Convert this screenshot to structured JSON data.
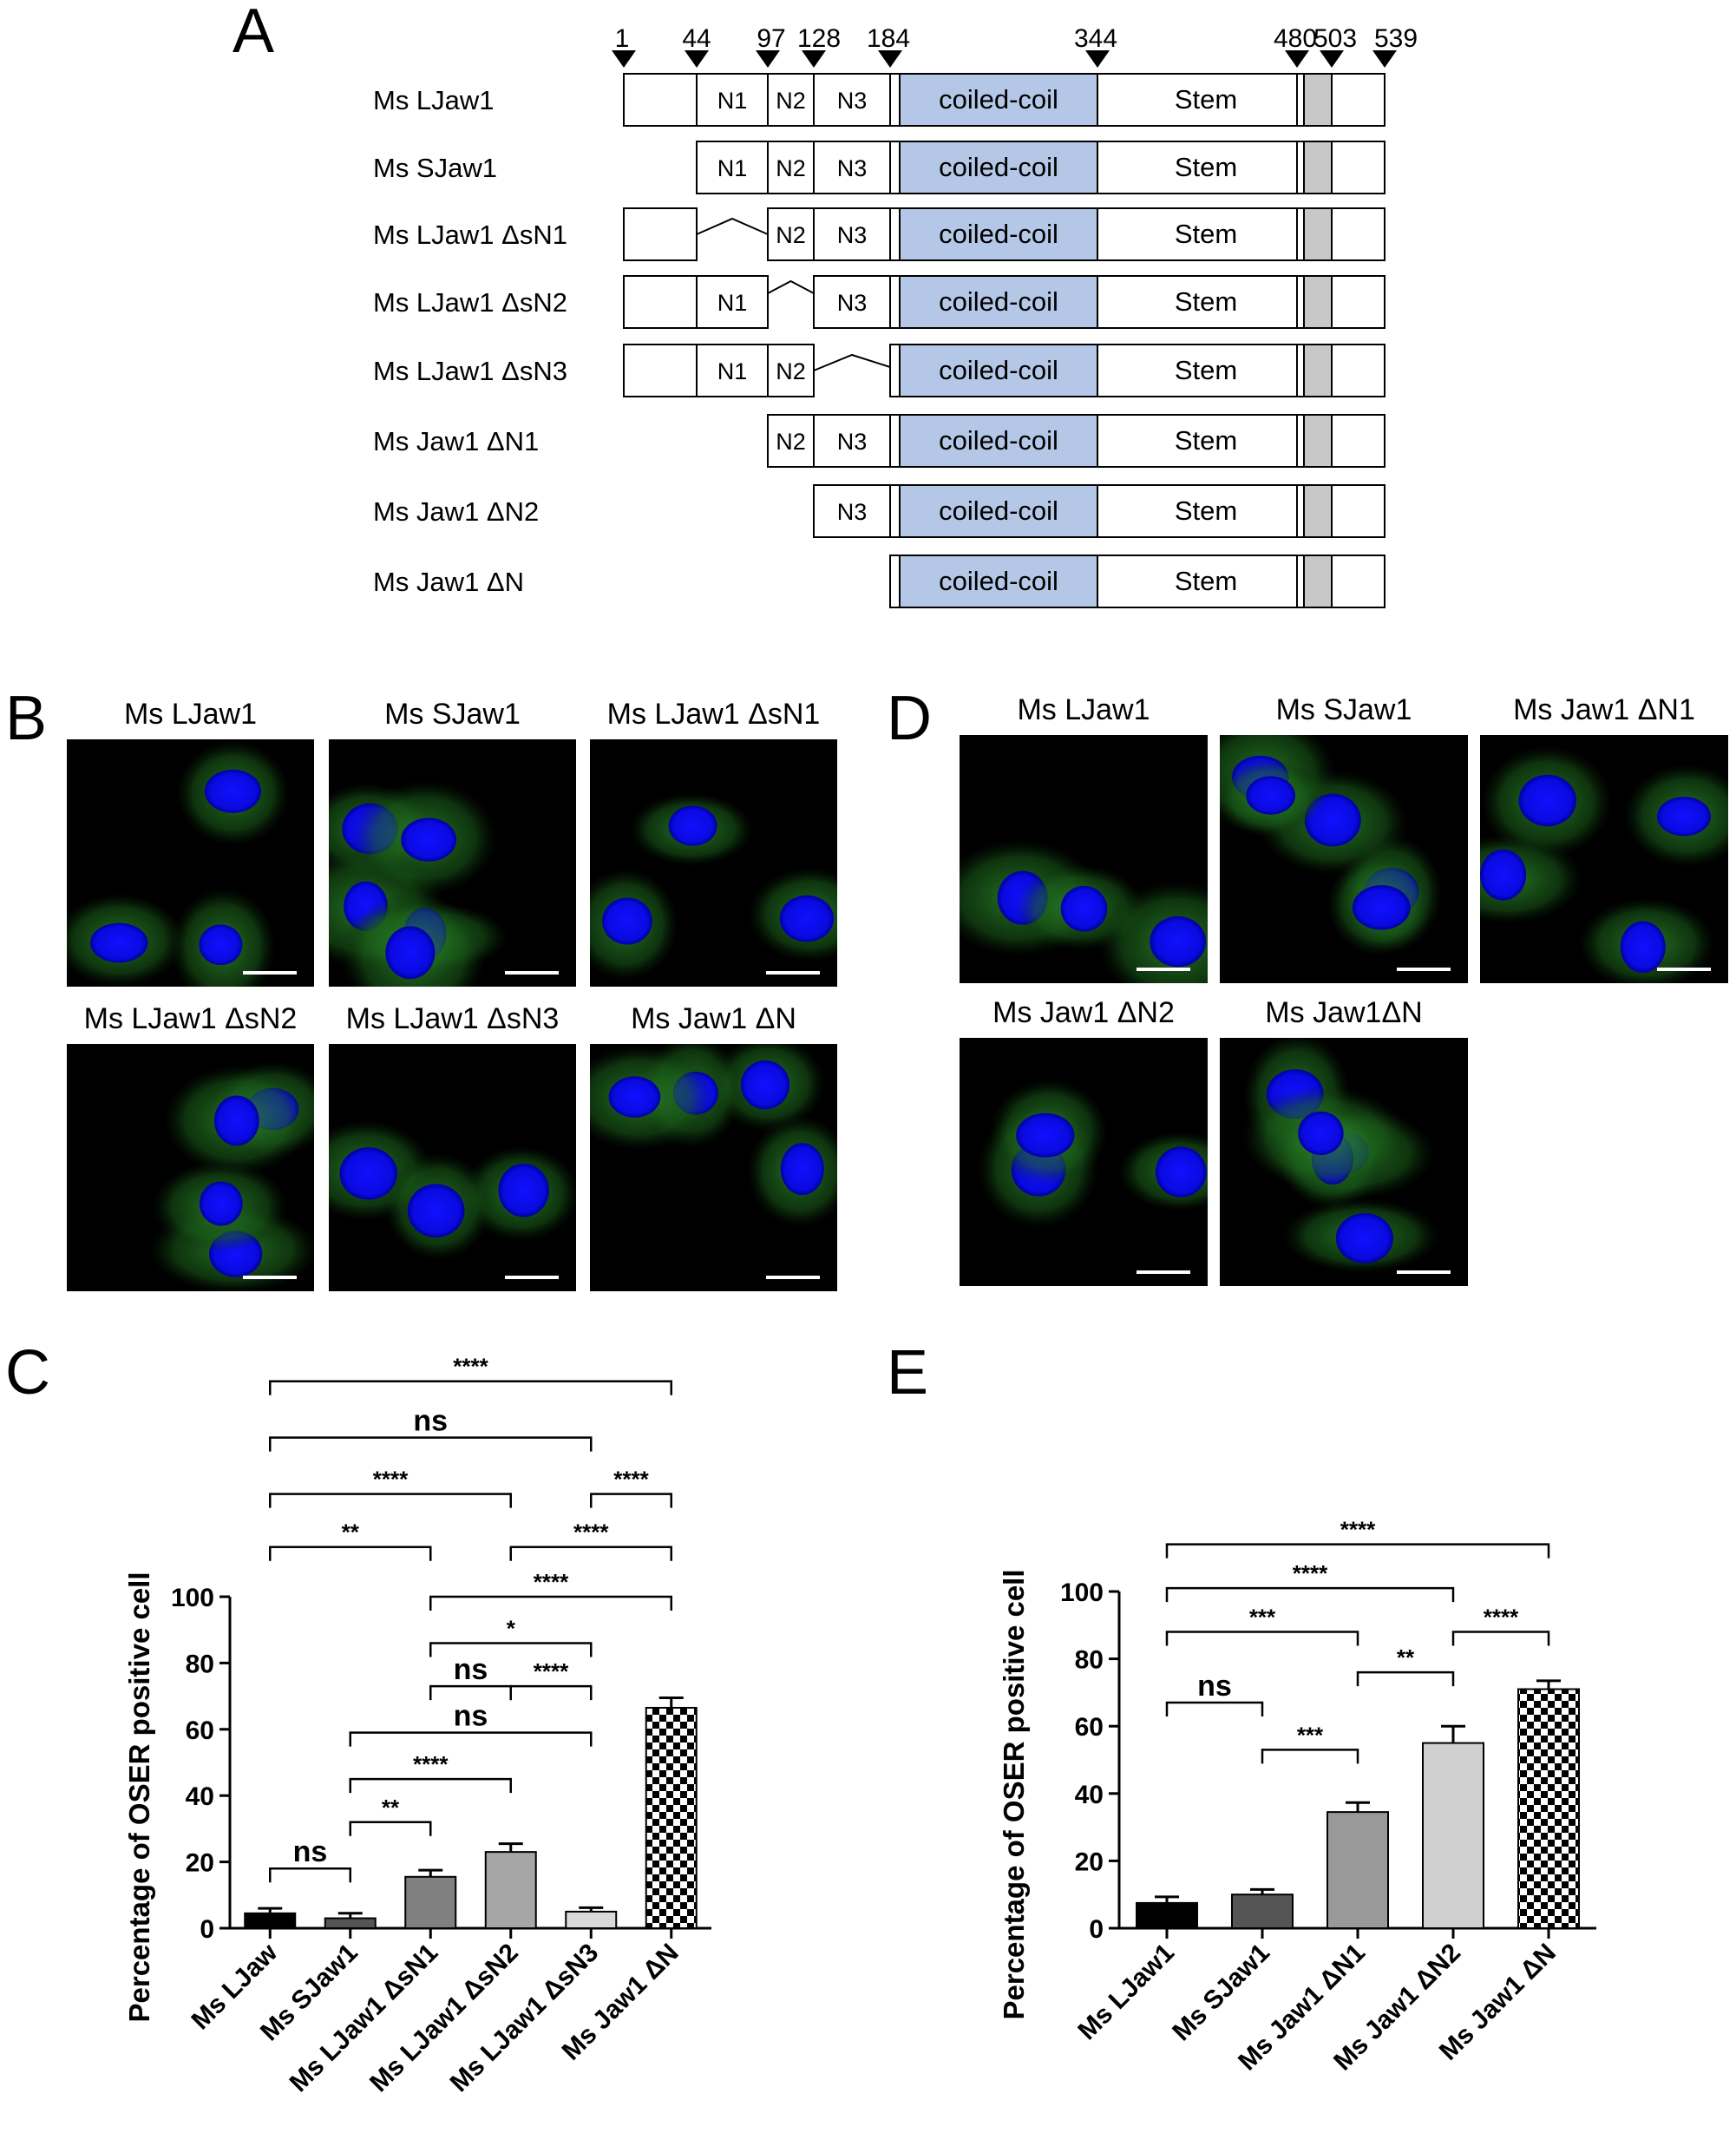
{
  "panels": {
    "A": "A",
    "B": "B",
    "C": "C",
    "D": "D",
    "E": "E"
  },
  "domain_map": {
    "positions": [
      "1",
      "44",
      "97",
      "128",
      "184",
      "344",
      "480",
      "503",
      "539"
    ],
    "segment_labels": {
      "n1": "N1",
      "n2": "N2",
      "n3": "N3",
      "coiled_coil": "coiled-coil",
      "stem": "Stem"
    },
    "colors": {
      "coiled_coil": "#b4c7e7",
      "tm": "#c8c8c8"
    },
    "constructs": [
      {
        "label": "Ms LJaw1",
        "layout": "full"
      },
      {
        "label": "Ms SJaw1",
        "layout": "from44"
      },
      {
        "label": "Ms LJaw1 ΔsN1",
        "layout": "delN1"
      },
      {
        "label": "Ms LJaw1 ΔsN2",
        "layout": "delN2"
      },
      {
        "label": "Ms LJaw1 ΔsN3",
        "layout": "delN3"
      },
      {
        "label": "Ms Jaw1 ΔN1",
        "layout": "from97"
      },
      {
        "label": "Ms Jaw1 ΔN2",
        "layout": "from128"
      },
      {
        "label": "Ms Jaw1 ΔN",
        "layout": "from184"
      }
    ]
  },
  "micrographs_B": [
    "Ms LJaw1",
    "Ms SJaw1",
    "Ms LJaw1 ΔsN1",
    "Ms LJaw1 ΔsN2",
    "Ms LJaw1 ΔsN3",
    "Ms Jaw1 ΔN"
  ],
  "micrographs_D": [
    "Ms LJaw1",
    "Ms SJaw1",
    "Ms Jaw1 ΔN1",
    "Ms Jaw1 ΔN2",
    "Ms Jaw1ΔN"
  ],
  "chart_data": [
    {
      "panel": "C",
      "type": "bar",
      "ylabel": "Percentage of OSER positive cell",
      "ylim": [
        0,
        100
      ],
      "yticks": [
        0,
        20,
        40,
        60,
        80,
        100
      ],
      "categories": [
        "Ms LJaw",
        "Ms SJaw1",
        "Ms LJaw1 ΔsN1",
        "Ms LJaw1 ΔsN2",
        "Ms LJaw1 ΔsN3",
        "Ms Jaw1 ΔN"
      ],
      "values": [
        4.5,
        3,
        15.5,
        23,
        5,
        66.5
      ],
      "errors": [
        1.5,
        1.5,
        2,
        2.5,
        1.2,
        3
      ],
      "bar_fills": [
        "black",
        "#555555",
        "#808080",
        "#a6a6a6",
        "#d9d9d9",
        "checker"
      ],
      "comparisons": [
        {
          "from": 0,
          "to": 1,
          "label": "ns",
          "level": 18
        },
        {
          "from": 1,
          "to": 2,
          "label": "**",
          "level": 32
        },
        {
          "from": 1,
          "to": 3,
          "label": "****",
          "level": 45
        },
        {
          "from": 1,
          "to": 4,
          "label": "ns",
          "level": 59
        },
        {
          "from": 2,
          "to": 3,
          "label": "ns",
          "level": 73
        },
        {
          "from": 3,
          "to": 4,
          "label": "****",
          "level": 73
        },
        {
          "from": 2,
          "to": 4,
          "label": "*",
          "level": 86
        },
        {
          "from": 2,
          "to": 5,
          "label": "****",
          "level": 100
        },
        {
          "from": 0,
          "to": 2,
          "label": "**",
          "level": 115
        },
        {
          "from": 3,
          "to": 5,
          "label": "****",
          "level": 115
        },
        {
          "from": 0,
          "to": 3,
          "label": "****",
          "level": 131
        },
        {
          "from": 4,
          "to": 5,
          "label": "****",
          "level": 131
        },
        {
          "from": 0,
          "to": 4,
          "label": "ns",
          "level": 148
        },
        {
          "from": 0,
          "to": 5,
          "label": "****",
          "level": 165
        }
      ]
    },
    {
      "panel": "E",
      "type": "bar",
      "ylabel": "Percentage of OSER positive cell",
      "ylim": [
        0,
        100
      ],
      "yticks": [
        0,
        20,
        40,
        60,
        80,
        100
      ],
      "categories": [
        "Ms LJaw1",
        "Ms SJaw1",
        "Ms Jaw1 ΔN1",
        "Ms Jaw1 ΔN2",
        "Ms Jaw1 ΔN"
      ],
      "values": [
        7.5,
        10,
        34.5,
        55,
        71
      ],
      "errors": [
        1.8,
        1.5,
        2.8,
        5,
        2.5
      ],
      "bar_fills": [
        "black",
        "#555555",
        "#999999",
        "#d0d0d0",
        "checker"
      ],
      "comparisons": [
        {
          "from": 0,
          "to": 1,
          "label": "ns",
          "level": 67
        },
        {
          "from": 1,
          "to": 2,
          "label": "***",
          "level": 53
        },
        {
          "from": 2,
          "to": 3,
          "label": "**",
          "level": 76
        },
        {
          "from": 3,
          "to": 4,
          "label": "****",
          "level": 88
        },
        {
          "from": 0,
          "to": 2,
          "label": "***",
          "level": 88
        },
        {
          "from": 0,
          "to": 3,
          "label": "****",
          "level": 101
        },
        {
          "from": 0,
          "to": 4,
          "label": "****",
          "level": 114
        }
      ]
    }
  ]
}
